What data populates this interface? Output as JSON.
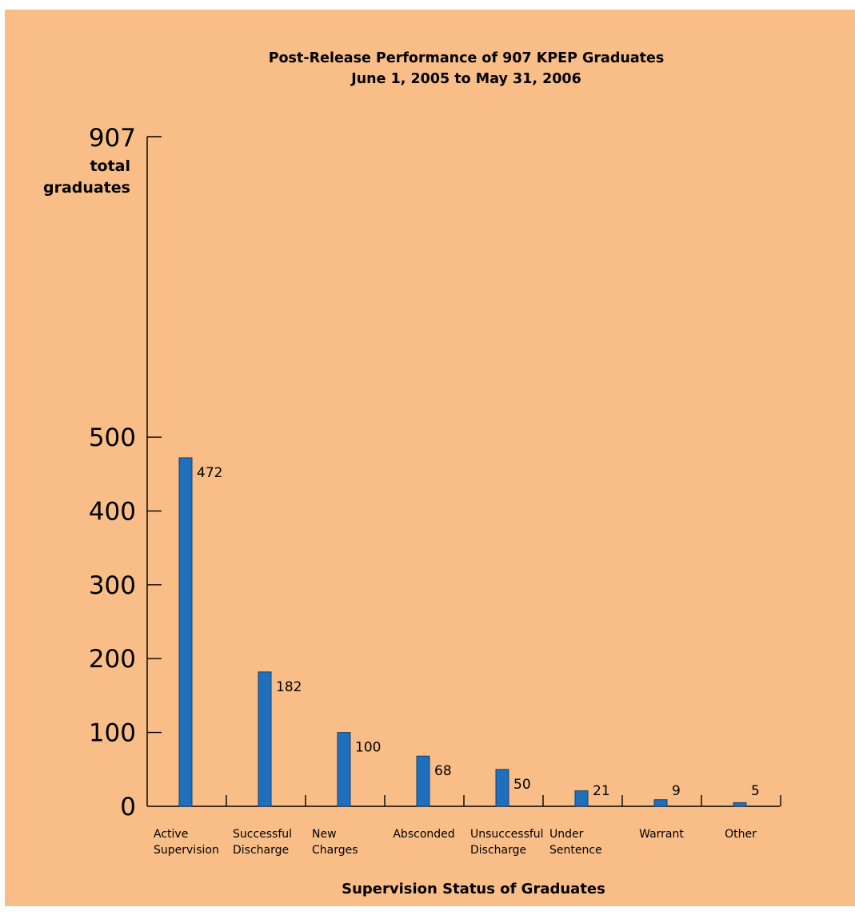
{
  "chart_data": {
    "type": "bar",
    "title": "Post-Release Performance of 907 KPEP Graduates",
    "subtitle": "June 1, 2005 to May 31, 2006",
    "xlabel": "Supervision Status of Graduates",
    "ylabel_value": "907",
    "ylabel_lines": [
      "total",
      "graduates"
    ],
    "categories": [
      [
        "Active",
        "Supervision"
      ],
      [
        "Successful",
        "Discharge"
      ],
      [
        "New",
        "Charges"
      ],
      [
        "Absconded"
      ],
      [
        "Unsuccessful",
        "Discharge"
      ],
      [
        "Under",
        "Sentence"
      ],
      [
        "Warrant"
      ],
      [
        "Other"
      ]
    ],
    "values": [
      472,
      182,
      100,
      68,
      50,
      21,
      9,
      5
    ],
    "data_labels": [
      "472",
      "182",
      "100",
      "68",
      "50",
      "21",
      "9",
      "5"
    ],
    "yticks": [
      0,
      100,
      200,
      300,
      400,
      500
    ],
    "ytick_labels": [
      "0",
      "100",
      "200",
      "300",
      "400",
      "500"
    ],
    "ylim": [
      0,
      907
    ],
    "grid": false,
    "bar_color": "#1f6fbf",
    "background_color": "#f9bd87"
  }
}
